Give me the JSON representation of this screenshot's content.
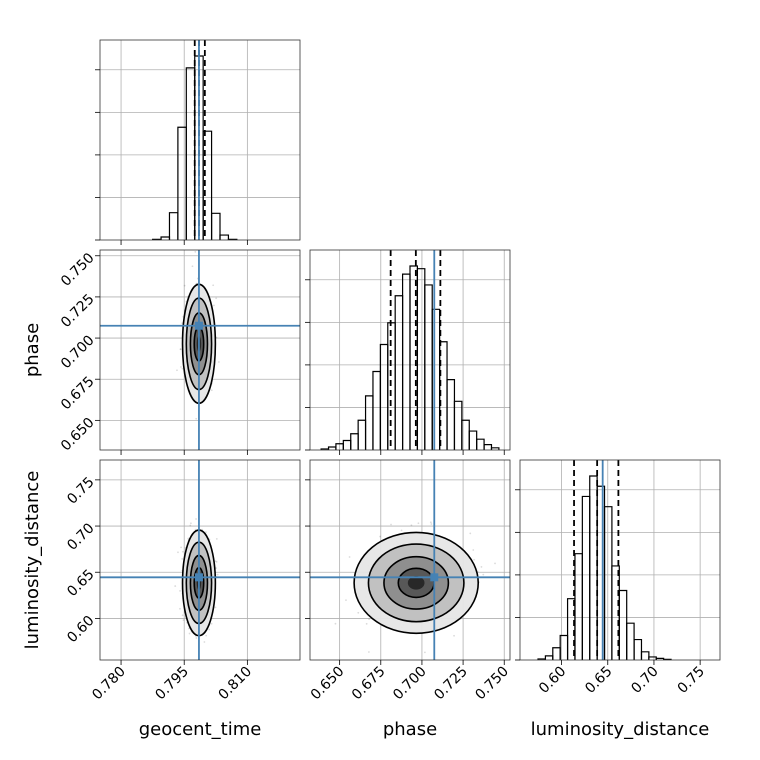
{
  "chart_data": {
    "type": "corner",
    "parameters": [
      {
        "key": "geocent_time",
        "label": "geocent_time",
        "range": [
          0.775,
          0.8225
        ],
        "ticks": [
          0.78,
          0.795,
          0.81
        ],
        "tick_labels": [
          "0.780",
          "0.795",
          "0.810"
        ],
        "truth": 0.7985,
        "quantiles": [
          0.7975,
          0.7985,
          0.7999
        ]
      },
      {
        "key": "phase",
        "label": "phase",
        "range": [
          0.632,
          0.7535
        ],
        "ticks": [
          0.65,
          0.675,
          0.7,
          0.725,
          0.75
        ],
        "tick_labels": [
          "0.650",
          "0.675",
          "0.700",
          "0.725",
          "0.750"
        ],
        "truth": 0.7075,
        "quantiles": [
          0.681,
          0.6963,
          0.7112
        ]
      },
      {
        "key": "luminosity_distance",
        "label": "luminosity_distance",
        "range": [
          0.555,
          0.7715
        ],
        "ticks": [
          0.6,
          0.65,
          0.7,
          0.75
        ],
        "tick_labels": [
          "0.60",
          "0.65",
          "0.70",
          "0.75"
        ],
        "truth": 0.6445,
        "quantiles": [
          0.6135,
          0.6385,
          0.6615
        ]
      }
    ],
    "truth_color": "#4682b4",
    "grid": true,
    "histograms": {
      "geocent_time": {
        "x": [
          0.7885,
          0.7905,
          0.7925,
          0.7945,
          0.7965,
          0.7985,
          0.8005,
          0.8025,
          0.8045,
          0.8065
        ],
        "values": [
          0.3,
          1.5,
          13.8,
          57,
          87,
          93,
          55,
          13.5,
          2.5,
          0.3
        ]
      },
      "phase": {
        "x": [
          0.641,
          0.6455,
          0.65,
          0.6545,
          0.659,
          0.6635,
          0.668,
          0.6725,
          0.677,
          0.6815,
          0.686,
          0.6905,
          0.695,
          0.6995,
          0.704,
          0.7085,
          0.713,
          0.7175,
          0.722,
          0.7265,
          0.731,
          0.7355,
          0.74,
          0.7445
        ],
        "values": [
          0.4,
          1.1,
          2.3,
          3.5,
          6,
          11,
          20,
          29,
          39,
          47,
          57,
          65,
          68,
          67,
          61,
          52,
          40,
          26,
          18,
          11,
          7,
          4,
          2,
          0.8
        ]
      },
      "luminosity_distance": {
        "x": [
          0.5785,
          0.5865,
          0.5945,
          0.6025,
          0.6105,
          0.6185,
          0.6265,
          0.6345,
          0.6425,
          0.6505,
          0.6585,
          0.6665,
          0.6745,
          0.6825,
          0.6905,
          0.6985,
          0.7065,
          0.7145
        ],
        "values": [
          0.5,
          2,
          6,
          12,
          30,
          52,
          80,
          90,
          85,
          75,
          46,
          34,
          18,
          10,
          4,
          1.5,
          0.8,
          0.3
        ]
      }
    },
    "pairs": [
      {
        "x": "geocent_time",
        "y": "phase",
        "center": [
          0.7985,
          0.6965
        ],
        "sigma": [
          0.0015,
          0.0139
        ],
        "rho": 0
      },
      {
        "x": "geocent_time",
        "y": "luminosity_distance",
        "center": [
          0.7985,
          0.6385
        ],
        "sigma": [
          0.0015,
          0.022
        ],
        "rho": 0
      },
      {
        "x": "phase",
        "y": "luminosity_distance",
        "center": [
          0.6965,
          0.6385
        ],
        "sigma": [
          0.0145,
          0.021
        ],
        "rho": 0
      }
    ]
  }
}
